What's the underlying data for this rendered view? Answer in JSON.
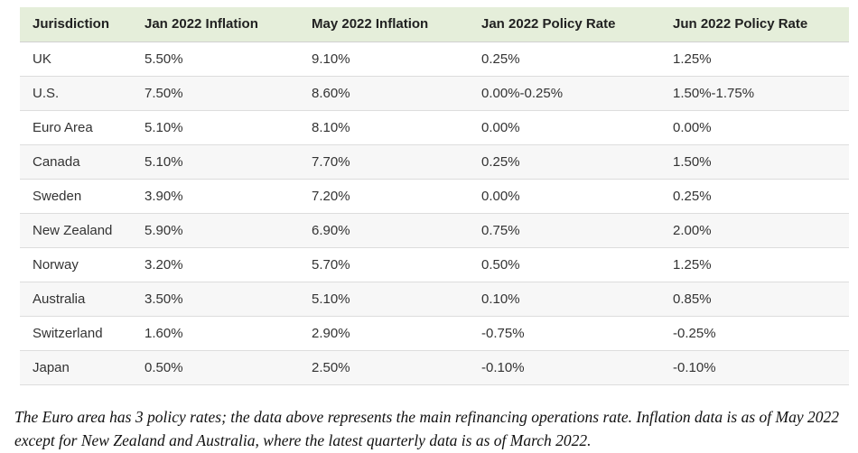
{
  "chart_data": {
    "type": "table",
    "columns": [
      "Jurisdiction",
      "Jan 2022 Inflation",
      "May 2022 Inflation",
      "Jan 2022 Policy Rate",
      "Jun 2022 Policy Rate"
    ],
    "rows": [
      [
        "UK",
        "5.50%",
        "9.10%",
        "0.25%",
        "1.25%"
      ],
      [
        "U.S.",
        "7.50%",
        "8.60%",
        "0.00%-0.25%",
        "1.50%-1.75%"
      ],
      [
        "Euro Area",
        "5.10%",
        "8.10%",
        "0.00%",
        "0.00%"
      ],
      [
        "Canada",
        "5.10%",
        "7.70%",
        "0.25%",
        "1.50%"
      ],
      [
        "Sweden",
        "3.90%",
        "7.20%",
        "0.00%",
        "0.25%"
      ],
      [
        "New Zealand",
        "5.90%",
        "6.90%",
        "0.75%",
        "2.00%"
      ],
      [
        "Norway",
        "3.20%",
        "5.70%",
        "0.50%",
        "1.25%"
      ],
      [
        "Australia",
        "3.50%",
        "5.10%",
        "0.10%",
        "0.85%"
      ],
      [
        "Switzerland",
        "1.60%",
        "2.90%",
        "-0.75%",
        "-0.25%"
      ],
      [
        "Japan",
        "0.50%",
        "2.50%",
        "-0.10%",
        "-0.10%"
      ]
    ],
    "legend_position": "none",
    "grid": "row-dividers"
  },
  "footnote": "The Euro area has 3 policy rates; the data above represents the main refinancing operations rate. Inflation data is as of May 2022 except for New Zealand and Australia, where the latest quarterly data is as of March 2022.",
  "colors": {
    "header_bg": "#e5eeda",
    "row_stripe_bg": "#f7f7f7",
    "row_divider": "#dddddd",
    "header_divider": "#d0d0d0",
    "header_text": "#212121",
    "cell_text": "#333333",
    "footnote_text": "#111111"
  }
}
